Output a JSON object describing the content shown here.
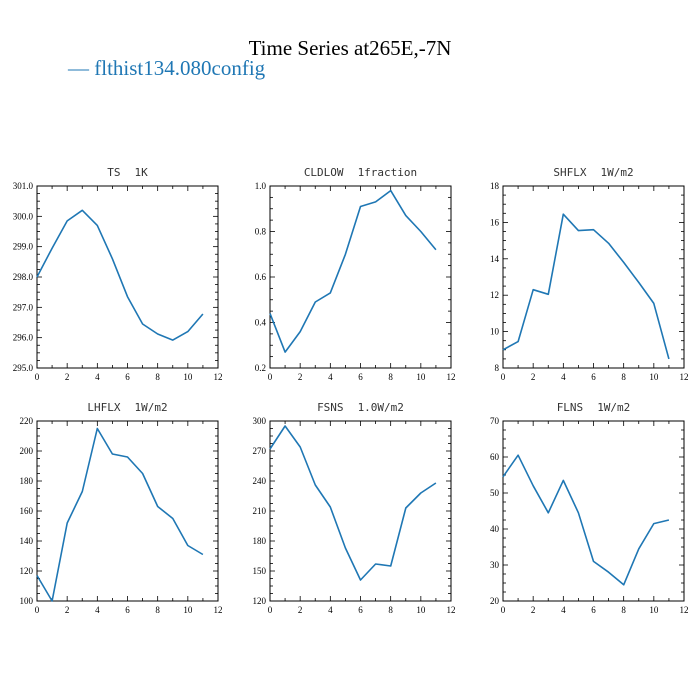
{
  "title": "Time Series at265E,-7N",
  "legend": {
    "marker": "—",
    "label": "flthist134.080config"
  },
  "colors": {
    "series": "#1f77b4",
    "text": "#000000"
  },
  "chart_data": [
    {
      "type": "line",
      "variable": "TS",
      "units": "1K",
      "x": [
        0,
        1,
        2,
        3,
        4,
        5,
        6,
        7,
        8,
        9,
        10,
        11
      ],
      "series": [
        {
          "name": "flthist134.080config",
          "values": [
            298.0,
            298.95,
            299.85,
            300.2,
            299.7,
            298.6,
            297.35,
            296.45,
            296.12,
            295.92,
            296.2,
            296.78
          ]
        }
      ],
      "xlim": [
        0,
        12
      ],
      "ylim": [
        295.0,
        301.0
      ],
      "xticks": [
        0,
        2,
        4,
        6,
        8,
        10,
        12
      ],
      "yticks": [
        295.0,
        296.0,
        297.0,
        298.0,
        299.0,
        300.0,
        301.0
      ],
      "ytick_labels": [
        "295.0",
        "296.0",
        "297.0",
        "298.0",
        "299.0",
        "300.0",
        "301.0"
      ]
    },
    {
      "type": "line",
      "variable": "CLDLOW",
      "units": "1fraction",
      "x": [
        0,
        1,
        2,
        3,
        4,
        5,
        6,
        7,
        8,
        9,
        10,
        11
      ],
      "series": [
        {
          "name": "flthist134.080config",
          "values": [
            0.44,
            0.27,
            0.36,
            0.49,
            0.53,
            0.7,
            0.91,
            0.93,
            0.98,
            0.87,
            0.8,
            0.72
          ]
        }
      ],
      "xlim": [
        0,
        12
      ],
      "ylim": [
        0.2,
        1.0
      ],
      "xticks": [
        0,
        2,
        4,
        6,
        8,
        10,
        12
      ],
      "yticks": [
        0.2,
        0.4,
        0.6,
        0.8,
        1.0
      ],
      "ytick_labels": [
        "0.2",
        "0.4",
        "0.6",
        "0.8",
        "1.0"
      ]
    },
    {
      "type": "line",
      "variable": "SHFLX",
      "units": "1W/m2",
      "x": [
        0,
        1,
        2,
        3,
        4,
        5,
        6,
        7,
        8,
        9,
        10,
        11
      ],
      "series": [
        {
          "name": "flthist134.080config",
          "values": [
            9.0,
            9.45,
            12.3,
            12.05,
            16.45,
            15.55,
            15.6,
            14.85,
            13.8,
            12.7,
            11.55,
            8.5
          ]
        }
      ],
      "xlim": [
        0,
        12
      ],
      "ylim": [
        8,
        18
      ],
      "xticks": [
        0,
        2,
        4,
        6,
        8,
        10,
        12
      ],
      "yticks": [
        8,
        10,
        12,
        14,
        16,
        18
      ],
      "ytick_labels": [
        "8",
        "10",
        "12",
        "14",
        "16",
        "18"
      ]
    },
    {
      "type": "line",
      "variable": "LHFLX",
      "units": "1W/m2",
      "x": [
        0,
        1,
        2,
        3,
        4,
        5,
        6,
        7,
        8,
        9,
        10,
        11
      ],
      "series": [
        {
          "name": "flthist134.080config",
          "values": [
            117,
            100,
            152,
            173,
            215,
            198,
            196,
            185,
            163,
            155,
            137,
            131
          ]
        }
      ],
      "xlim": [
        0,
        12
      ],
      "ylim": [
        100,
        220
      ],
      "xticks": [
        0,
        2,
        4,
        6,
        8,
        10,
        12
      ],
      "yticks": [
        100,
        120,
        140,
        160,
        180,
        200,
        220
      ],
      "ytick_labels": [
        "100",
        "120",
        "140",
        "160",
        "180",
        "200",
        "220"
      ]
    },
    {
      "type": "line",
      "variable": "FSNS",
      "units": "1.0W/m2",
      "x": [
        0,
        1,
        2,
        3,
        4,
        5,
        6,
        7,
        8,
        9,
        10,
        11
      ],
      "series": [
        {
          "name": "flthist134.080config",
          "values": [
            272,
            295,
            274,
            236,
            214,
            173,
            141,
            157,
            155,
            213,
            228,
            238
          ]
        }
      ],
      "xlim": [
        0,
        12
      ],
      "ylim": [
        120,
        300
      ],
      "xticks": [
        0,
        2,
        4,
        6,
        8,
        10,
        12
      ],
      "yticks": [
        120,
        150,
        180,
        210,
        240,
        270,
        300
      ],
      "ytick_labels": [
        "120",
        "150",
        "180",
        "210",
        "240",
        "270",
        "300"
      ]
    },
    {
      "type": "line",
      "variable": "FLNS",
      "units": "1W/m2",
      "x": [
        0,
        1,
        2,
        3,
        4,
        5,
        6,
        7,
        8,
        9,
        10,
        11
      ],
      "series": [
        {
          "name": "flthist134.080config",
          "values": [
            54.5,
            60.5,
            52.0,
            44.5,
            53.5,
            44.5,
            31.0,
            28.0,
            24.5,
            34.5,
            41.5,
            42.5
          ]
        }
      ],
      "xlim": [
        0,
        12
      ],
      "ylim": [
        20,
        70
      ],
      "xticks": [
        0,
        2,
        4,
        6,
        8,
        10,
        12
      ],
      "yticks": [
        20,
        30,
        40,
        50,
        60,
        70
      ],
      "ytick_labels": [
        "20",
        "30",
        "40",
        "50",
        "60",
        "70"
      ]
    }
  ]
}
